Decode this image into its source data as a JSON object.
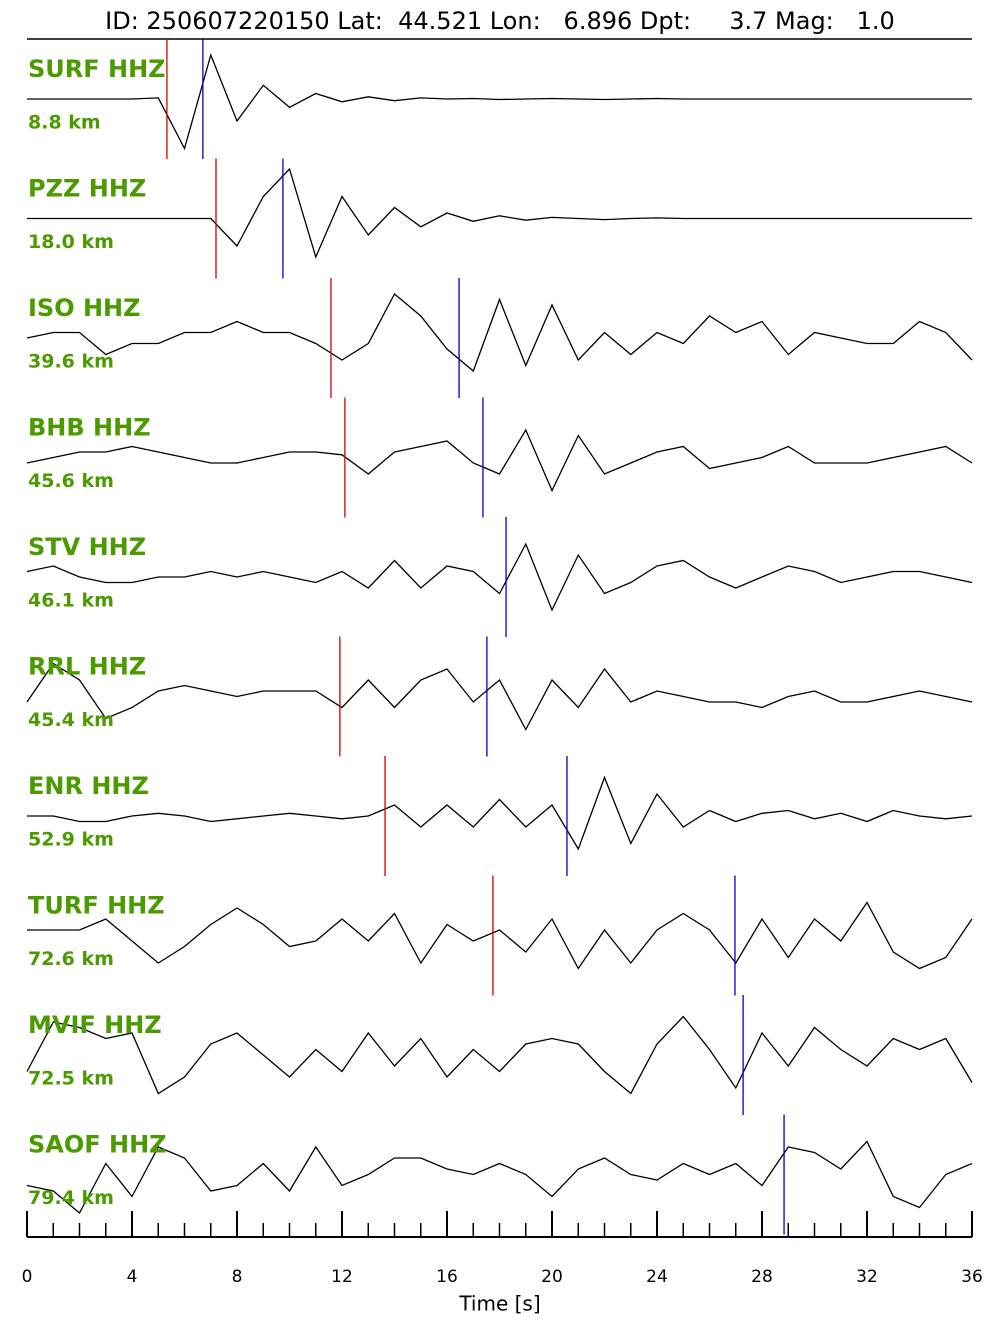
{
  "chart_data": {
    "type": "seismogram",
    "title": "ID: 250607220150 Lat:  44.521 Lon:   6.896 Dpt:     3.7 Mag:   1.0",
    "xlabel": "Time [s]",
    "xlim": [
      0,
      36
    ],
    "xticks": [
      0,
      4,
      8,
      12,
      16,
      20,
      24,
      28,
      32,
      36
    ],
    "xminorticks": [
      0,
      1,
      2,
      3,
      4,
      5,
      6,
      7,
      8,
      9,
      10,
      11,
      12,
      13,
      14,
      15,
      16,
      17,
      18,
      19,
      20,
      21,
      22,
      23,
      24,
      25,
      26,
      27,
      28,
      29,
      30,
      31,
      32,
      33,
      34,
      35,
      36
    ],
    "trace_color": "#000000",
    "p_color": "#d40000",
    "s_color": "#0000cc",
    "label_color": "#4a9a00",
    "x": [
      0,
      1,
      2,
      3,
      4,
      5,
      6,
      7,
      8,
      9,
      10,
      11,
      12,
      13,
      14,
      15,
      16,
      17,
      18,
      19,
      20,
      21,
      22,
      23,
      24,
      25,
      26,
      27,
      28,
      29,
      30,
      31,
      32,
      33,
      34,
      35,
      36
    ],
    "traces": [
      {
        "name": "SURF HHZ",
        "distance": "8.8 km",
        "p_pick": 5.33,
        "s_pick": 6.7,
        "values": [
          0,
          0,
          0,
          0,
          0,
          0.02,
          -0.9,
          0.8,
          -0.4,
          0.25,
          -0.15,
          0.1,
          -0.05,
          0.04,
          -0.03,
          0.02,
          0,
          0.01,
          -0.01,
          0,
          0.01,
          0,
          -0.01,
          0,
          0.01,
          0,
          0,
          0,
          0,
          0,
          0,
          0,
          0,
          0,
          0,
          0,
          0
        ]
      },
      {
        "name": "PZZ HHZ",
        "distance": "18.0 km",
        "p_pick": 7.2,
        "s_pick": 9.75,
        "values": [
          0,
          0,
          0,
          0,
          0,
          0,
          0,
          0,
          -0.5,
          0.4,
          0.9,
          -0.7,
          0.4,
          -0.3,
          0.2,
          -0.15,
          0.1,
          -0.05,
          0.05,
          -0.03,
          0.02,
          0,
          -0.02,
          0,
          0.01,
          0,
          0,
          0,
          0,
          0,
          0,
          0,
          0,
          0,
          0,
          0,
          0
        ]
      },
      {
        "name": "ISO HHZ",
        "distance": "39.6 km",
        "p_pick": 11.58,
        "s_pick": 16.46,
        "values": [
          0,
          0.1,
          0.1,
          -0.3,
          -0.1,
          -0.1,
          0.1,
          0.1,
          0.3,
          0.1,
          0.1,
          -0.1,
          -0.4,
          -0.1,
          0.8,
          0.4,
          -0.2,
          -0.6,
          0.7,
          -0.5,
          0.6,
          -0.4,
          0.1,
          -0.3,
          0.1,
          -0.1,
          0.4,
          0.1,
          0.3,
          -0.3,
          0.1,
          0,
          -0.1,
          -0.1,
          0.3,
          0.1,
          -0.4
        ]
      },
      {
        "name": "BHB HHZ",
        "distance": "45.6 km",
        "p_pick": 12.11,
        "s_pick": 17.37,
        "values": [
          -0.1,
          0,
          0.1,
          0.1,
          0.2,
          0.1,
          0,
          -0.1,
          -0.1,
          0,
          0.1,
          0.1,
          0.05,
          -0.3,
          0.1,
          0.2,
          0.3,
          -0.1,
          -0.3,
          0.5,
          -0.6,
          0.4,
          -0.3,
          -0.1,
          0.1,
          0.2,
          -0.2,
          -0.1,
          0,
          0.2,
          -0.1,
          -0.1,
          -0.1,
          0,
          0.1,
          0.2,
          -0.1
        ]
      },
      {
        "name": "STV HHZ",
        "distance": "46.1 km",
        "p_pick": null,
        "s_pick": 18.25,
        "values": [
          0.1,
          0.2,
          0,
          -0.1,
          -0.1,
          0,
          0,
          0.1,
          0,
          0.1,
          0,
          -0.1,
          0.1,
          -0.2,
          0.3,
          -0.2,
          0.2,
          0.1,
          -0.3,
          0.6,
          -0.6,
          0.4,
          -0.3,
          -0.1,
          0.2,
          0.3,
          0,
          -0.2,
          0,
          0.2,
          0.1,
          -0.1,
          0,
          0.1,
          0.1,
          0,
          -0.1
        ]
      },
      {
        "name": "RRL HHZ",
        "distance": "45.4 km",
        "p_pick": 11.92,
        "s_pick": 17.52,
        "values": [
          -0.1,
          0.6,
          0.3,
          -0.4,
          -0.2,
          0.1,
          0.2,
          0.1,
          0,
          0.1,
          0.1,
          0.1,
          -0.2,
          0.3,
          -0.2,
          0.3,
          0.5,
          -0.1,
          0.3,
          -0.6,
          0.3,
          -0.2,
          0.5,
          -0.1,
          0.1,
          0,
          -0.1,
          -0.1,
          -0.2,
          0,
          0.1,
          -0.1,
          -0.1,
          0,
          0.1,
          0,
          -0.1
        ]
      },
      {
        "name": "ENR HHZ",
        "distance": "52.9 km",
        "p_pick": 13.64,
        "s_pick": 20.57,
        "values": [
          0,
          0,
          -0.1,
          -0.1,
          0,
          0.05,
          0,
          -0.1,
          -0.05,
          0,
          0.05,
          0,
          -0.05,
          0,
          0.2,
          -0.2,
          0.2,
          -0.2,
          0.3,
          -0.2,
          0.2,
          -0.6,
          0.7,
          -0.5,
          0.4,
          -0.2,
          0.1,
          -0.1,
          0.05,
          0.1,
          -0.05,
          0.05,
          -0.1,
          0.1,
          0,
          -0.05,
          0
        ]
      },
      {
        "name": "TURF HHZ",
        "distance": "72.6 km",
        "p_pick": 17.75,
        "s_pick": 26.97,
        "values": [
          0.1,
          0.1,
          0.1,
          0.3,
          -0.1,
          -0.5,
          -0.2,
          0.2,
          0.5,
          0.2,
          -0.2,
          -0.1,
          0.3,
          -0.1,
          0.4,
          -0.5,
          0.2,
          -0.1,
          0.1,
          -0.3,
          0.3,
          -0.6,
          0.1,
          -0.5,
          0.1,
          0.4,
          0.1,
          -0.5,
          0.3,
          -0.4,
          0.3,
          -0.1,
          0.6,
          -0.3,
          -0.6,
          -0.4,
          0.3
        ]
      },
      {
        "name": "MVIF HHZ",
        "distance": "72.5 km",
        "p_pick": null,
        "s_pick": 27.28,
        "values": [
          -0.3,
          0.6,
          0.5,
          0.3,
          0.4,
          -0.7,
          -0.4,
          0.2,
          0.4,
          0,
          -0.4,
          0.1,
          -0.3,
          0.4,
          -0.2,
          0.3,
          -0.4,
          0.1,
          -0.3,
          0.2,
          0.3,
          0.2,
          -0.3,
          -0.7,
          0.2,
          0.7,
          0.1,
          -0.6,
          0.4,
          -0.2,
          0.5,
          0.1,
          -0.2,
          0.3,
          0.1,
          0.3,
          -0.5
        ]
      },
      {
        "name": "SAOF HHZ",
        "distance": "79.4 km",
        "p_pick": null,
        "s_pick": 28.84,
        "values": [
          -0.2,
          -0.3,
          -0.7,
          0.2,
          -0.4,
          0.5,
          0.3,
          -0.3,
          -0.2,
          0.2,
          -0.3,
          0.5,
          -0.2,
          0,
          0.3,
          0.3,
          0.1,
          0,
          0.2,
          0,
          -0.4,
          0.1,
          0.3,
          0,
          -0.1,
          0.2,
          0,
          0.2,
          -0.2,
          0.5,
          0.4,
          0.1,
          0.6,
          -0.4,
          -0.6,
          0,
          0.2
        ]
      }
    ]
  }
}
